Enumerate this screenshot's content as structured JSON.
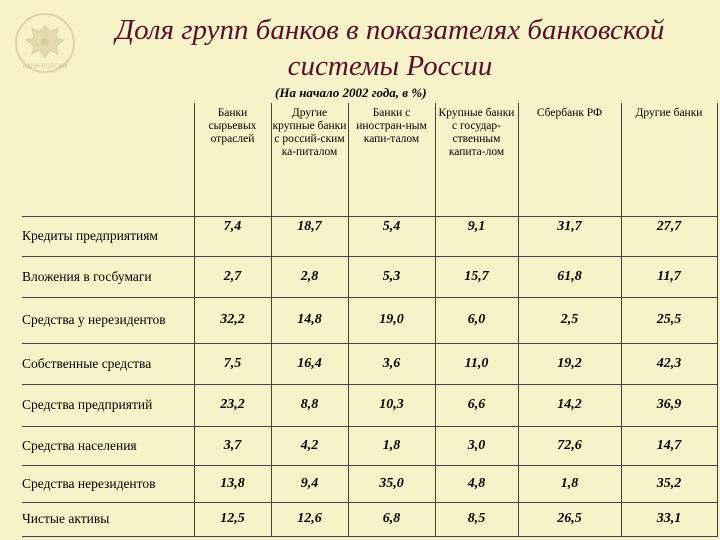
{
  "title_line1": "Доля групп банков в показателях банковской",
  "title_line2": "системы России",
  "subtitle": "(На начало 2002 года, в %)",
  "logo_text": "БАНК РОССИИ",
  "columns": [
    "Банки сырьевых отраслей",
    "Другие крупные банки с россий-ским ка-питалом",
    "Банки с иностран-ным капи-талом",
    "Крупные банки с государ-ственным капита-лом",
    "Сбербанк РФ",
    "Другие банки"
  ],
  "rows": [
    {
      "label": "Кредиты предприятиям",
      "values": [
        "7,4",
        "18,7",
        "5,4",
        "9,1",
        "31,7",
        "27,7"
      ]
    },
    {
      "label": "Вложения в госбумаги",
      "values": [
        "2,7",
        "2,8",
        "5,3",
        "15,7",
        "61,8",
        "11,7"
      ]
    },
    {
      "label": "Средства у нерезидентов",
      "values": [
        "32,2",
        "14,8",
        "19,0",
        "6,0",
        "2,5",
        "25,5"
      ]
    },
    {
      "label": "Собственные средства",
      "values": [
        "7,5",
        "16,4",
        "3,6",
        "11,0",
        "19,2",
        "42,3"
      ]
    },
    {
      "label": "Средства предприятий",
      "values": [
        "23,2",
        "8,8",
        "10,3",
        "6,6",
        "14,2",
        "36,9"
      ]
    },
    {
      "label": "Средства населения",
      "values": [
        "3,7",
        "4,2",
        "1,8",
        "3,0",
        "72,6",
        "14,7"
      ]
    },
    {
      "label": "Средства нерезидентов",
      "values": [
        "13,8",
        "9,4",
        "35,0",
        "4,8",
        "1,8",
        "35,2"
      ]
    },
    {
      "label": "Чистые активы",
      "values": [
        "12,5",
        "12,6",
        "6,8",
        "8,5",
        "26,5",
        "33,1"
      ]
    }
  ],
  "colors": {
    "background": "#f7f3c8",
    "title": "#5a0f2a"
  },
  "icons": {
    "logo": "double-headed-eagle-icon"
  }
}
